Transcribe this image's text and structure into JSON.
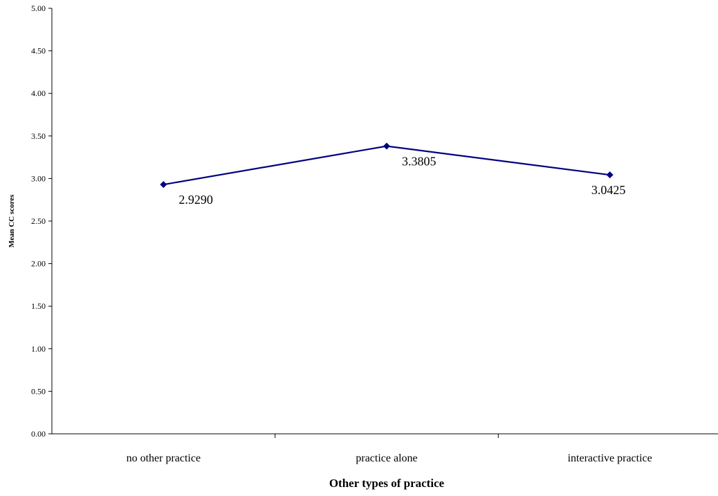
{
  "chart_data": {
    "type": "line",
    "title": "",
    "xlabel": "Other types of practice",
    "ylabel": "Mean CC scores",
    "categories": [
      "no other practice",
      "practice alone",
      "interactive practice"
    ],
    "series": [
      {
        "values": [
          2.929,
          3.3805,
          3.0425
        ],
        "color": "#000080"
      }
    ],
    "data_labels": [
      "2.9290",
      "3.3805",
      "3.0425"
    ],
    "ylim": [
      0,
      5
    ],
    "yticks": [
      "0.00",
      "0.50",
      "1.00",
      "1.50",
      "2.00",
      "2.50",
      "3.00",
      "3.50",
      "4.00",
      "4.50",
      "5.00"
    ],
    "grid": false,
    "legend": "none",
    "marker": "diamond"
  }
}
